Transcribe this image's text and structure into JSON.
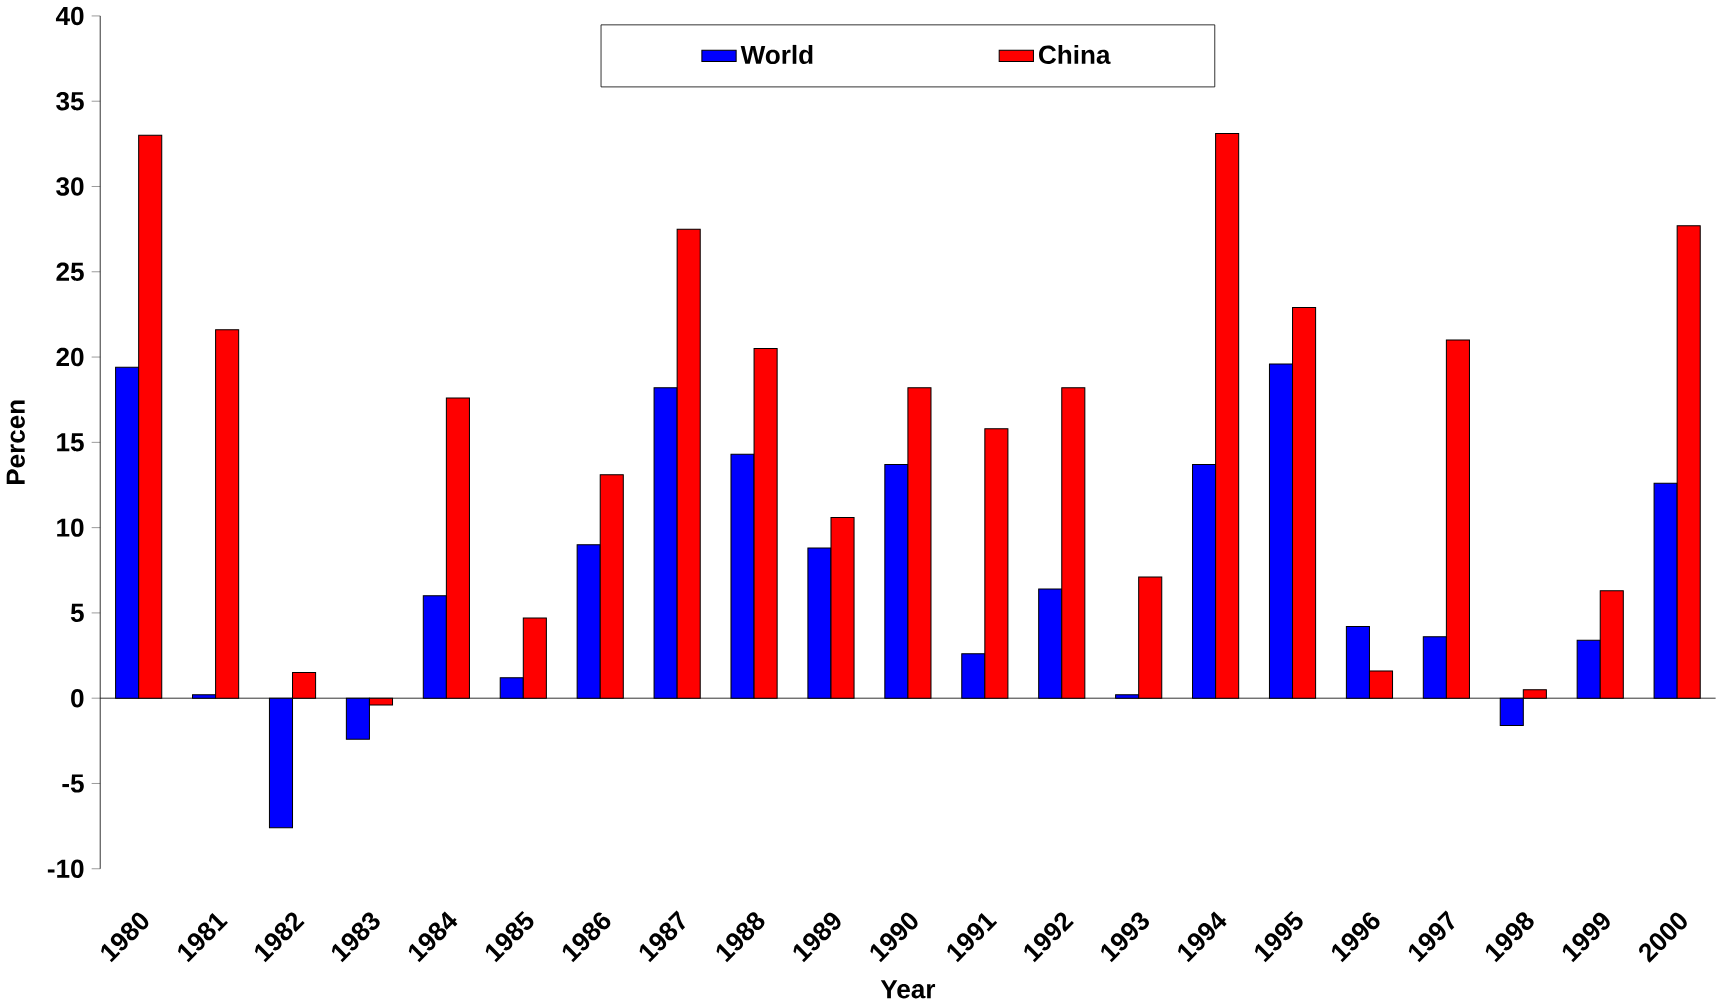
{
  "chart_data": {
    "type": "bar",
    "xlabel": "Year",
    "ylabel": "Percen",
    "categories": [
      "1980",
      "1981",
      "1982",
      "1983",
      "1984",
      "1985",
      "1986",
      "1987",
      "1988",
      "1989",
      "1990",
      "1991",
      "1992",
      "1993",
      "1994",
      "1995",
      "1996",
      "1997",
      "1998",
      "1999",
      "2000"
    ],
    "series": [
      {
        "name": "World",
        "color": "#0000ff",
        "values": [
          19.4,
          0.2,
          -7.6,
          -2.4,
          6.0,
          1.2,
          9.0,
          18.2,
          14.3,
          8.8,
          13.7,
          2.6,
          6.4,
          0.2,
          13.7,
          19.6,
          4.2,
          3.6,
          -1.6,
          3.4,
          12.6
        ]
      },
      {
        "name": "China",
        "color": "#ff0000",
        "values": [
          33.0,
          21.6,
          1.5,
          -0.4,
          17.6,
          4.7,
          13.1,
          27.5,
          20.5,
          10.6,
          18.2,
          15.8,
          18.2,
          7.1,
          33.1,
          22.9,
          1.6,
          21.0,
          0.5,
          6.3,
          27.7
        ]
      }
    ],
    "ylim": [
      -10,
      40
    ],
    "yticks": [
      -10,
      -5,
      0,
      5,
      10,
      15,
      20,
      25,
      30,
      35,
      40
    ],
    "legend": "top"
  }
}
